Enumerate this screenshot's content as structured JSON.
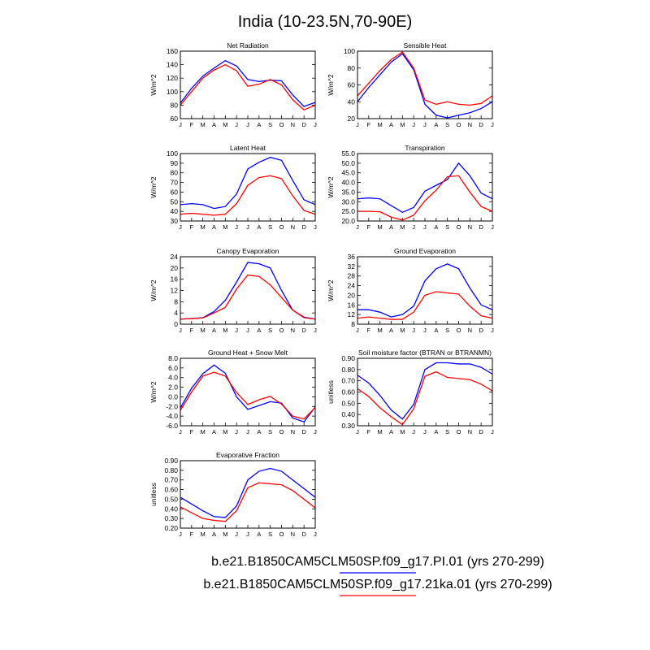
{
  "title": "India (10-23.5N,70-90E)",
  "legend": [
    {
      "name": "b.e21.B1850CAM5CLM50SP.f09_g17.PI.01 (yrs 270-299)",
      "color": "#0000ff"
    },
    {
      "name": "b.e21.B1850CAM5CLM50SP.f09_g17.21ka.01 (yrs 270-299)",
      "color": "#ff0000"
    }
  ],
  "chart_data": [
    {
      "type": "line",
      "title": "Net Radiation",
      "y_label": "W/m^2",
      "categories": [
        "J",
        "F",
        "M",
        "A",
        "M",
        "J",
        "J",
        "A",
        "S",
        "O",
        "N",
        "D",
        "J"
      ],
      "ylim": [
        60,
        160
      ],
      "yticks": [
        60,
        80,
        100,
        120,
        140,
        160
      ],
      "series": [
        {
          "color": "#0000ff",
          "values": [
            83,
            105,
            123,
            135,
            146,
            138,
            118,
            115,
            117,
            116,
            95,
            78,
            84
          ]
        },
        {
          "color": "#ff0000",
          "values": [
            80,
            100,
            120,
            132,
            140,
            131,
            108,
            111,
            118,
            110,
            88,
            73,
            80
          ]
        }
      ]
    },
    {
      "type": "line",
      "title": "Sensible Heat",
      "y_label": "W/m^2",
      "categories": [
        "J",
        "F",
        "M",
        "A",
        "M",
        "J",
        "J",
        "A",
        "S",
        "O",
        "N",
        "D",
        "J"
      ],
      "ylim": [
        20,
        100
      ],
      "yticks": [
        20,
        40,
        60,
        80,
        100
      ],
      "series": [
        {
          "color": "#0000ff",
          "values": [
            40,
            57,
            72,
            87,
            97,
            78,
            37,
            24,
            21,
            24,
            27,
            32,
            40
          ]
        },
        {
          "color": "#ff0000",
          "values": [
            47,
            62,
            77,
            90,
            99,
            80,
            42,
            37,
            40,
            37,
            36,
            38,
            47
          ]
        }
      ]
    },
    {
      "type": "line",
      "title": "Latent Heat",
      "y_label": "W/m^2",
      "categories": [
        "J",
        "F",
        "M",
        "A",
        "M",
        "J",
        "J",
        "A",
        "S",
        "O",
        "N",
        "D",
        "J"
      ],
      "ylim": [
        30,
        100
      ],
      "yticks": [
        30,
        40,
        50,
        60,
        70,
        80,
        90,
        100
      ],
      "series": [
        {
          "color": "#0000ff",
          "values": [
            47,
            48,
            47,
            43,
            45,
            58,
            84,
            91,
            96,
            93,
            72,
            52,
            47
          ]
        },
        {
          "color": "#ff0000",
          "values": [
            37,
            38,
            37,
            36,
            37,
            48,
            67,
            75,
            77,
            74,
            56,
            41,
            37
          ]
        }
      ]
    },
    {
      "type": "line",
      "title": "Transpiration",
      "y_label": "W/m^2",
      "categories": [
        "J",
        "F",
        "M",
        "A",
        "M",
        "J",
        "J",
        "A",
        "S",
        "O",
        "N",
        "D",
        "J"
      ],
      "ylim": [
        20,
        55
      ],
      "yticks": [
        {
          "value": 20,
          "label": "20.0"
        },
        {
          "value": 25,
          "label": "25.0"
        },
        {
          "value": 30,
          "label": "30.0"
        },
        {
          "value": 35,
          "label": "35.0"
        },
        {
          "value": 40,
          "label": "40.0"
        },
        {
          "value": 45,
          "label": "45.0"
        },
        {
          "value": 50,
          "label": "50.0"
        },
        {
          "value": 55,
          "label": "55.0"
        }
      ],
      "series": [
        {
          "color": "#0000ff",
          "values": [
            31.5,
            32,
            31.5,
            28,
            24.5,
            27,
            35.5,
            38.5,
            41.5,
            50,
            43.5,
            34.5,
            31.5
          ]
        },
        {
          "color": "#ff0000",
          "values": [
            25,
            25,
            24.8,
            22,
            20.5,
            23,
            30.5,
            36,
            43,
            43.5,
            35,
            27.5,
            25
          ]
        }
      ]
    },
    {
      "type": "line",
      "title": "Canopy Evaporation",
      "y_label": "W/m^2",
      "categories": [
        "J",
        "F",
        "M",
        "A",
        "M",
        "J",
        "J",
        "A",
        "S",
        "O",
        "N",
        "D",
        "J"
      ],
      "ylim": [
        0,
        24
      ],
      "yticks": [
        0,
        4,
        8,
        12,
        16,
        20,
        24
      ],
      "series": [
        {
          "color": "#0000ff",
          "values": [
            1.8,
            2,
            2.3,
            4.5,
            8.5,
            15,
            22,
            21.5,
            20,
            12,
            5,
            2.5,
            1.8
          ]
        },
        {
          "color": "#ff0000",
          "values": [
            1.8,
            2,
            2.2,
            4,
            6,
            12.5,
            17.5,
            17,
            14,
            9.5,
            5,
            2.3,
            1.8
          ]
        }
      ]
    },
    {
      "type": "line",
      "title": "Ground Evaporation",
      "y_label": "W/m^2",
      "categories": [
        "J",
        "F",
        "M",
        "A",
        "M",
        "J",
        "J",
        "A",
        "S",
        "O",
        "N",
        "D",
        "J"
      ],
      "ylim": [
        8,
        36
      ],
      "yticks": [
        8,
        12,
        16,
        20,
        24,
        28,
        32,
        36
      ],
      "series": [
        {
          "color": "#0000ff",
          "values": [
            14,
            14,
            13,
            11,
            12,
            15.5,
            26,
            31,
            33,
            31,
            23,
            16,
            14
          ]
        },
        {
          "color": "#ff0000",
          "values": [
            10.5,
            11,
            10.5,
            10,
            10,
            13,
            20,
            21.5,
            21,
            20.5,
            15.5,
            11.5,
            10.5
          ]
        }
      ]
    },
    {
      "type": "line",
      "title": "Ground Heat + Snow Melt",
      "y_label": "W/m^2",
      "categories": [
        "J",
        "F",
        "M",
        "A",
        "M",
        "J",
        "J",
        "A",
        "S",
        "O",
        "N",
        "D",
        "J"
      ],
      "ylim": [
        -6,
        8
      ],
      "yticks": [
        {
          "value": -6,
          "label": "-6.0"
        },
        {
          "value": -4,
          "label": "-4.0"
        },
        {
          "value": -2,
          "label": "-2.0"
        },
        {
          "value": 0,
          "label": "0.0"
        },
        {
          "value": 2,
          "label": "2.0"
        },
        {
          "value": 4,
          "label": "4.0"
        },
        {
          "value": 6,
          "label": "6.0"
        },
        {
          "value": 8,
          "label": "8.0"
        }
      ],
      "series": [
        {
          "color": "#0000ff",
          "values": [
            -2.3,
            1.8,
            4.8,
            6.6,
            4.9,
            0,
            -2.6,
            -1.8,
            -1,
            -1.3,
            -4.4,
            -5.2,
            -2.1
          ]
        },
        {
          "color": "#ff0000",
          "values": [
            -2.8,
            1,
            4.3,
            5.1,
            4.3,
            0.9,
            -1.6,
            -0.6,
            0.1,
            -1.5,
            -4,
            -4.6,
            -2.2
          ]
        }
      ]
    },
    {
      "type": "line",
      "title": "Soil moisture factor (BTRAN or BTRANMN)",
      "y_label": "unitless",
      "categories": [
        "J",
        "F",
        "M",
        "A",
        "M",
        "J",
        "J",
        "A",
        "S",
        "O",
        "N",
        "D",
        "J"
      ],
      "ylim": [
        0.3,
        0.9
      ],
      "yticks": [
        {
          "value": 0.3,
          "label": "0.30"
        },
        {
          "value": 0.4,
          "label": "0.40"
        },
        {
          "value": 0.5,
          "label": "0.50"
        },
        {
          "value": 0.6,
          "label": "0.60"
        },
        {
          "value": 0.7,
          "label": "0.70"
        },
        {
          "value": 0.8,
          "label": "0.80"
        },
        {
          "value": 0.9,
          "label": "0.90"
        }
      ],
      "series": [
        {
          "color": "#0000ff",
          "values": [
            0.75,
            0.68,
            0.57,
            0.44,
            0.36,
            0.49,
            0.8,
            0.86,
            0.86,
            0.85,
            0.85,
            0.82,
            0.76
          ]
        },
        {
          "color": "#ff0000",
          "values": [
            0.63,
            0.56,
            0.46,
            0.38,
            0.31,
            0.45,
            0.74,
            0.78,
            0.73,
            0.72,
            0.71,
            0.67,
            0.61
          ]
        }
      ]
    },
    {
      "type": "line",
      "title": "Evaporative Fraction",
      "y_label": "unitless",
      "categories": [
        "J",
        "F",
        "M",
        "A",
        "M",
        "J",
        "J",
        "A",
        "S",
        "O",
        "N",
        "D",
        "J"
      ],
      "ylim": [
        0.2,
        0.9
      ],
      "yticks": [
        {
          "value": 0.2,
          "label": "0.20"
        },
        {
          "value": 0.3,
          "label": "0.30"
        },
        {
          "value": 0.4,
          "label": "0.40"
        },
        {
          "value": 0.5,
          "label": "0.50"
        },
        {
          "value": 0.6,
          "label": "0.60"
        },
        {
          "value": 0.7,
          "label": "0.70"
        },
        {
          "value": 0.8,
          "label": "0.80"
        },
        {
          "value": 0.9,
          "label": "0.90"
        }
      ],
      "series": [
        {
          "color": "#0000ff",
          "values": [
            0.52,
            0.45,
            0.38,
            0.32,
            0.31,
            0.43,
            0.7,
            0.79,
            0.82,
            0.79,
            0.7,
            0.61,
            0.52
          ]
        },
        {
          "color": "#ff0000",
          "values": [
            0.42,
            0.36,
            0.3,
            0.28,
            0.27,
            0.38,
            0.62,
            0.67,
            0.66,
            0.65,
            0.59,
            0.5,
            0.41
          ]
        }
      ]
    }
  ]
}
